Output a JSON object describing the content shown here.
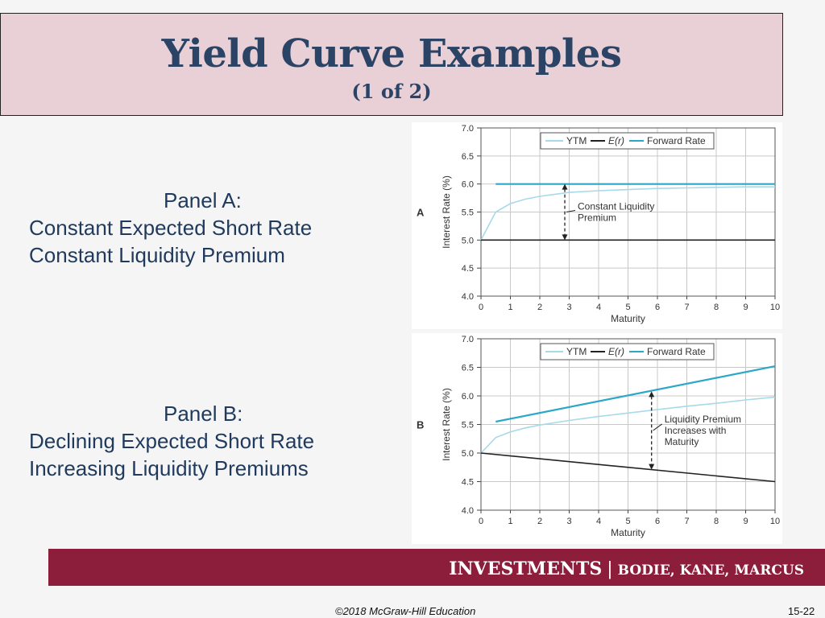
{
  "title": "Yield Curve Examples",
  "subtitle": "(1 of 2)",
  "panel_a_text": {
    "heading": "Panel A:",
    "line1": "Constant Expected Short Rate",
    "line2": "Constant Liquidity Premium"
  },
  "panel_b_text": {
    "heading": "Panel B:",
    "line1": "Declining Expected Short Rate",
    "line2": "Increasing Liquidity Premiums"
  },
  "footer": {
    "brand": "INVESTMENTS",
    "separator": "|",
    "authors": "BODIE, KANE, MARCUS",
    "copyright": "©2018 McGraw-Hill Education",
    "page": "15-22"
  },
  "chart_data": [
    {
      "type": "line",
      "panel_label": "A",
      "xlabel": "Maturity",
      "ylabel": "Interest Rate (%)",
      "xlim": [
        0,
        10
      ],
      "ylim": [
        4.0,
        7.0
      ],
      "x_ticks": [
        "0",
        "1",
        "2",
        "3",
        "4",
        "5",
        "6",
        "7",
        "8",
        "9",
        "10"
      ],
      "y_ticks": [
        "4.0",
        "4.5",
        "5.0",
        "5.5",
        "6.0",
        "6.5",
        "7.0"
      ],
      "grid": true,
      "legend_position": "top-right",
      "legend": [
        "YTM",
        "E(r)",
        "Forward Rate"
      ],
      "annotation": {
        "line1": "Constant Liquidity",
        "line2": "Premium",
        "x": 2.85,
        "y_from": 5.0,
        "y_to": 6.0
      },
      "series": [
        {
          "name": "YTM",
          "color": "#a7d9ea",
          "x": [
            0,
            0.5,
            1,
            1.5,
            2,
            3,
            4,
            5,
            6,
            7,
            8,
            9,
            10
          ],
          "y": [
            5.0,
            5.5,
            5.65,
            5.73,
            5.78,
            5.85,
            5.88,
            5.9,
            5.92,
            5.93,
            5.94,
            5.95,
            5.95
          ]
        },
        {
          "name": "E(r)",
          "color": "#222222",
          "x": [
            0,
            10
          ],
          "y": [
            5.0,
            5.0
          ]
        },
        {
          "name": "Forward Rate",
          "color": "#2aa7c9",
          "x": [
            0.5,
            10
          ],
          "y": [
            6.0,
            6.0
          ]
        }
      ]
    },
    {
      "type": "line",
      "panel_label": "B",
      "xlabel": "Maturity",
      "ylabel": "Interest Rate (%)",
      "xlim": [
        0,
        10
      ],
      "ylim": [
        4.0,
        7.0
      ],
      "x_ticks": [
        "0",
        "1",
        "2",
        "3",
        "4",
        "5",
        "6",
        "7",
        "8",
        "9",
        "10"
      ],
      "y_ticks": [
        "4.0",
        "4.5",
        "5.0",
        "5.5",
        "6.0",
        "6.5",
        "7.0"
      ],
      "grid": true,
      "legend_position": "top-right",
      "legend": [
        "YTM",
        "E(r)",
        "Forward Rate"
      ],
      "annotation": {
        "line1": "Liquidity Premium",
        "line2": "Increases with",
        "line3": "Maturity",
        "x": 5.8,
        "y_from": 4.71,
        "y_to": 6.08
      },
      "series": [
        {
          "name": "YTM",
          "color": "#a7d9ea",
          "x": [
            0,
            0.5,
            1,
            1.5,
            2,
            3,
            4,
            5,
            6,
            7,
            8,
            9,
            10
          ],
          "y": [
            5.0,
            5.27,
            5.37,
            5.44,
            5.49,
            5.57,
            5.64,
            5.7,
            5.76,
            5.82,
            5.87,
            5.93,
            5.98
          ]
        },
        {
          "name": "E(r)",
          "color": "#222222",
          "x": [
            0,
            10
          ],
          "y": [
            5.0,
            4.5
          ]
        },
        {
          "name": "Forward Rate",
          "color": "#2aa7c9",
          "x": [
            0.5,
            10
          ],
          "y": [
            5.55,
            6.52
          ]
        }
      ]
    }
  ]
}
